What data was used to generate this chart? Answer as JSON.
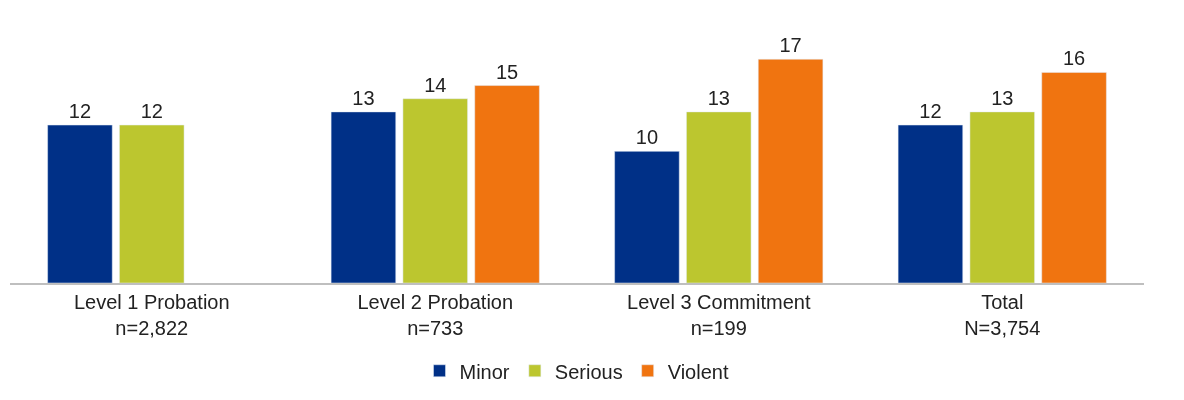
{
  "chart_data": {
    "type": "bar",
    "categories": [
      "Level 1 Probation\nn=2,822",
      "Level 2 Probation\nn=733",
      "Level 3 Commitment\nn=199",
      "Total\nN=3,754"
    ],
    "series": [
      {
        "name": "Minor",
        "color": "#003087",
        "values": [
          12,
          13,
          10,
          12
        ]
      },
      {
        "name": "Serious",
        "color": "#bcc62f",
        "values": [
          12,
          14,
          13,
          13
        ]
      },
      {
        "name": "Violent",
        "color": "#f07410",
        "values": [
          null,
          15,
          17,
          16
        ]
      }
    ],
    "data_labels": true,
    "legend": "bottom",
    "tick_labels": "x"
  }
}
